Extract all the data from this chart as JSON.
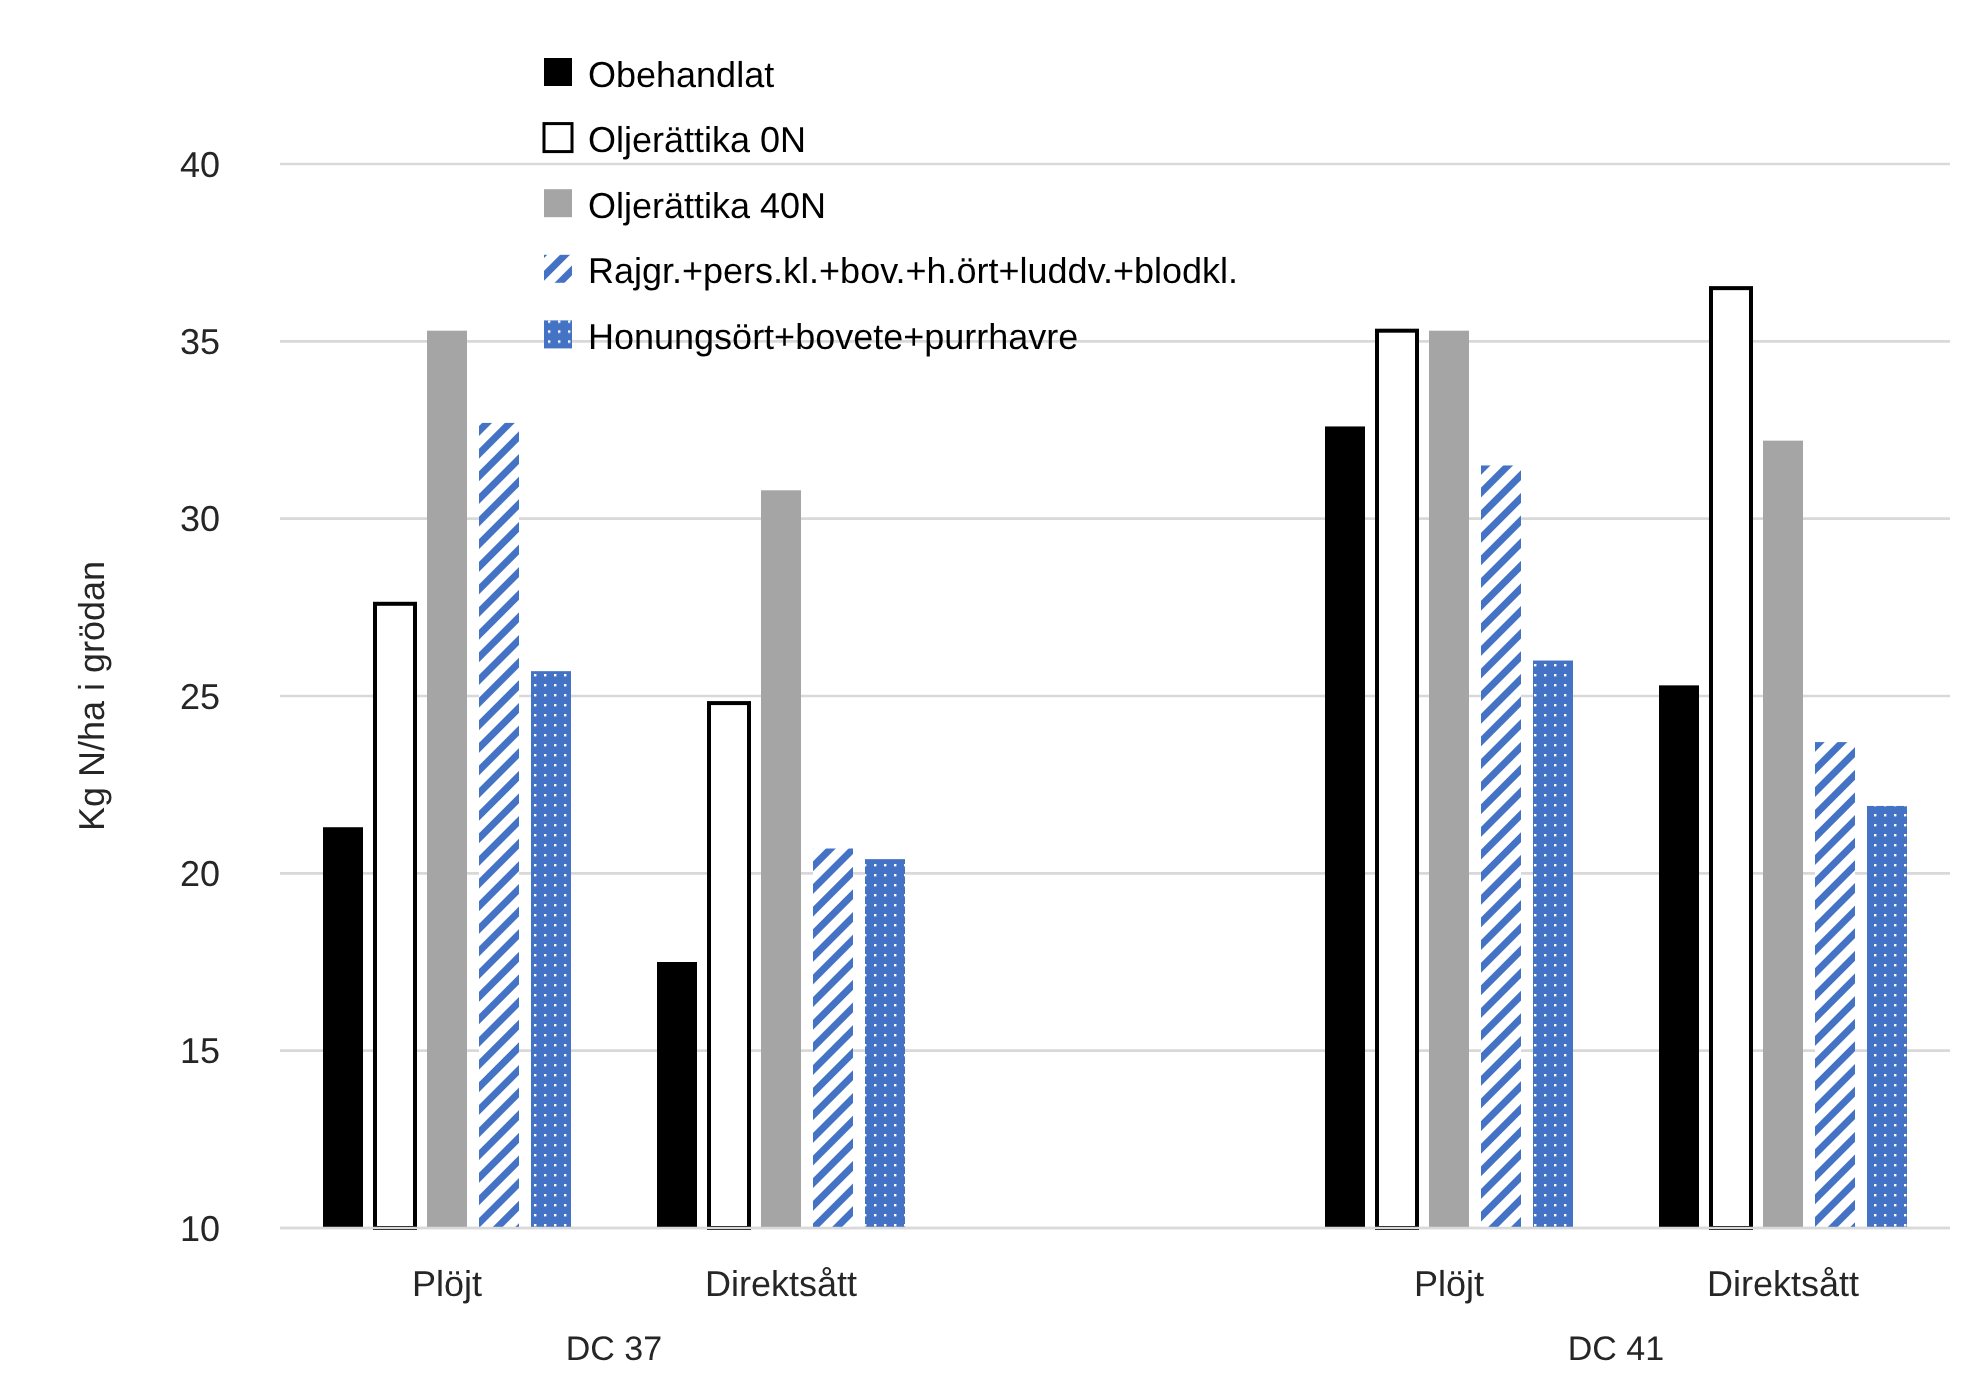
{
  "chart_data": {
    "type": "bar",
    "ylabel": "Kg N/ha i grödan",
    "categories": [
      "Plöjt",
      "Direktsått",
      null,
      "Plöjt",
      "Direktsått"
    ],
    "series": [
      {
        "name": "Obehandlat",
        "color": "#000000",
        "values": [
          21.3,
          17.5,
          null,
          32.6,
          25.3
        ]
      },
      {
        "name": "Oljerättika 0N",
        "color": "#ffffff",
        "values": [
          27.6,
          24.8,
          null,
          35.3,
          36.5
        ]
      },
      {
        "name": "Oljerättika 40N",
        "color": "#a5a5a5",
        "values": [
          35.3,
          30.8,
          null,
          35.3,
          32.2
        ]
      },
      {
        "name": "Rajgr.+pers.kl.+bov.+h.ört+luddv.+blodkl.",
        "color": "#4472c4",
        "values": [
          32.7,
          20.7,
          null,
          31.5,
          23.7
        ]
      },
      {
        "name": "Honungsört+bovete+purrhavre",
        "color": "#4472c4",
        "values": [
          25.7,
          20.4,
          null,
          26.0,
          21.9
        ]
      }
    ],
    "annotations": [
      "DC 37",
      "DC 41"
    ],
    "ylim": [
      10,
      40
    ],
    "yticks": [
      10,
      15,
      20,
      25,
      30,
      35,
      40
    ],
    "grid": "y",
    "legend": "top"
  }
}
